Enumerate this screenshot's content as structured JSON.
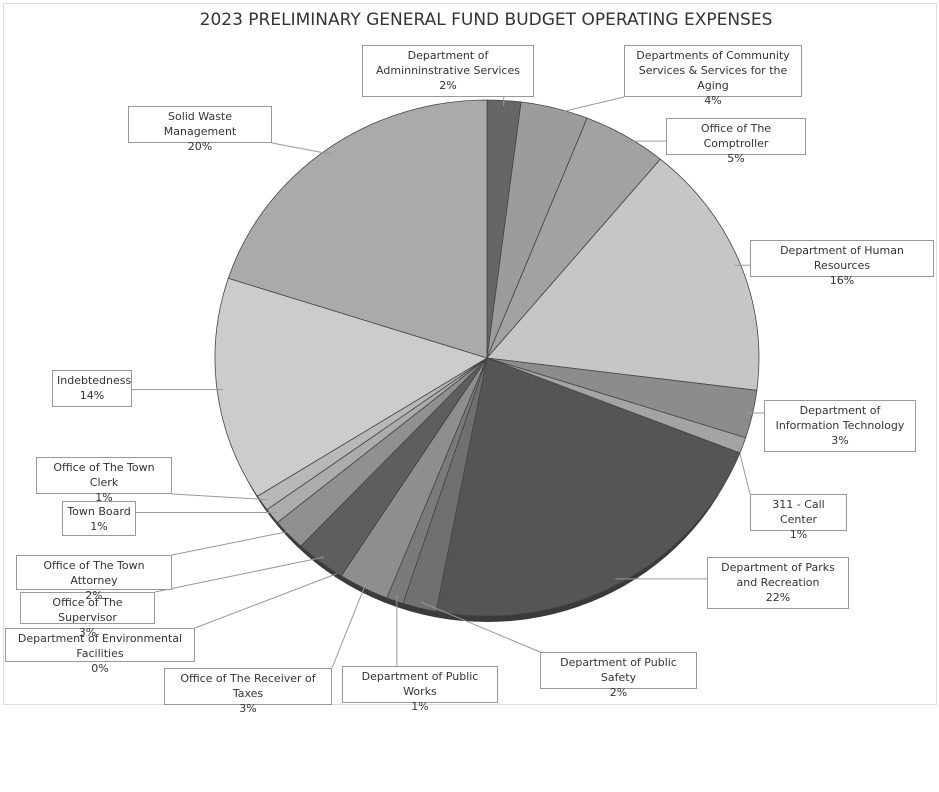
{
  "chart_data": {
    "type": "pie",
    "title": "2023 PRELIMINARY GENERAL FUND BUDGET OPERATING EXPENSES",
    "categories": [
      "Department of Adminninstrative Services",
      "Departments of Community Services & Services for the Aging",
      "Office of The Comptroller",
      "Department of Human Resources",
      "Department of Information Technology",
      "311 - Call Center",
      "Department of Parks and Recreation",
      "Department of Public Safety",
      "Department of Public Works",
      "Office of The Receiver of Taxes",
      "Department of Environmental Facilities",
      "Office of The Supervisor",
      "Office of The Town Attorney",
      "Town Board",
      "Office of The Town Clerk",
      "Indebtedness",
      "Solid Waste Management"
    ],
    "values": [
      2,
      4,
      5,
      16,
      3,
      1,
      22,
      2,
      1,
      3,
      0,
      3,
      2,
      1,
      1,
      14,
      20
    ],
    "value_labels": [
      "2%",
      "4%",
      "5%",
      "16%",
      "3%",
      "1%",
      "22%",
      "2%",
      "1%",
      "3%",
      "0%",
      "3%",
      "2%",
      "1%",
      "1%",
      "14%",
      "20%"
    ],
    "colors": [
      "#666666",
      "#9c9c9c",
      "#a2a2a2",
      "#c6c6c6",
      "#8c8c8c",
      "#a4a4a4",
      "#555555",
      "#707070",
      "#7a7a7a",
      "#8e8e8e",
      "#444444",
      "#5e5e5e",
      "#909090",
      "#acacac",
      "#b8b8b8",
      "#cccccc",
      "#aaaaaa"
    ]
  }
}
